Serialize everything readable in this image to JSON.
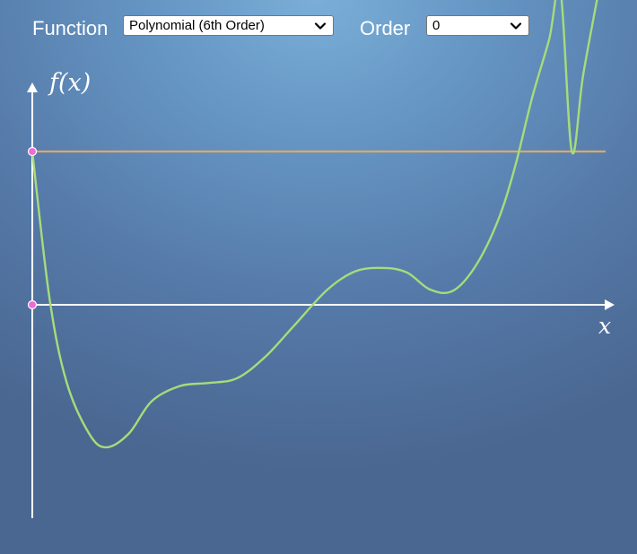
{
  "controls": {
    "function_label": "Function",
    "function_value": "Polynomial (6th Order)",
    "order_label": "Order",
    "order_value": "0"
  },
  "plot": {
    "y_axis_label": "f(x)",
    "x_axis_label": "x"
  },
  "colors": {
    "function_curve": "#a6dc7a",
    "approximation_line": "#e0a766",
    "point_markers": "#f06ad6",
    "axes": "#ffffff"
  },
  "chart_data": {
    "type": "line",
    "title": "",
    "xlabel": "x",
    "ylabel": "f(x)",
    "series": [
      {
        "x": [
          0,
          0.03,
          0.06,
          0.1,
          0.13,
          0.17,
          0.21,
          0.26,
          0.31,
          0.36,
          0.41,
          0.46,
          0.52,
          0.57,
          0.62,
          0.66,
          0.7,
          0.74,
          0.78,
          0.82,
          0.85,
          0.88,
          0.91,
          0.93,
          0.95,
          0.97,
          1.0
        ],
        "y": [
          1.0,
          0.05,
          -0.5,
          -0.84,
          -0.93,
          -0.84,
          -0.63,
          -0.53,
          -0.51,
          -0.48,
          -0.34,
          -0.14,
          0.1,
          0.22,
          0.24,
          0.21,
          0.1,
          0.09,
          0.25,
          0.55,
          0.9,
          1.35,
          1.73,
          2.05,
          1.0,
          1.5,
          2.1
        ]
      },
      {
        "x": [
          0,
          1
        ],
        "y": [
          1,
          1
        ]
      }
    ],
    "points": [
      {
        "x": 0,
        "y": 1
      },
      {
        "x": 0,
        "y": 0
      }
    ]
  }
}
